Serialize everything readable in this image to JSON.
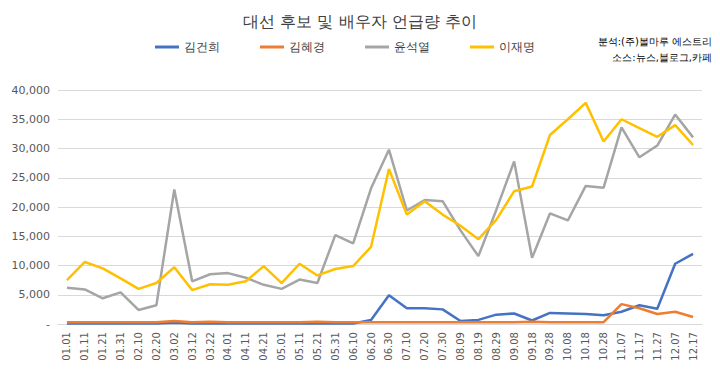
{
  "chart_data": {
    "type": "line",
    "title": "대선 후보 및 배우자 언급량 추이",
    "annotations": [
      "분석:(주)볼마루 에스트리",
      "소스:뉴스,블로그,카페"
    ],
    "categories": [
      "01.01",
      "01.11",
      "01.21",
      "01.31",
      "02.10",
      "02.20",
      "03.02",
      "03.12",
      "03.22",
      "04.01",
      "04.11",
      "04.21",
      "05.01",
      "05.11",
      "05.21",
      "05.31",
      "06.10",
      "06.20",
      "06.30",
      "07.10",
      "07.20",
      "07.30",
      "08.09",
      "08.19",
      "08.29",
      "09.08",
      "09.18",
      "09.28",
      "10.08",
      "10.18",
      "10.28",
      "11.07",
      "11.17",
      "11.27",
      "12.07",
      "12.17"
    ],
    "series": [
      {
        "name": "김건희",
        "color": "#4472c4",
        "values": [
          100,
          100,
          100,
          100,
          100,
          100,
          200,
          100,
          100,
          100,
          100,
          100,
          100,
          100,
          100,
          100,
          100,
          700,
          4900,
          2700,
          2700,
          2500,
          500,
          700,
          1600,
          1800,
          600,
          1900,
          1800,
          1700,
          1500,
          2100,
          3200,
          2600,
          10300,
          12000
        ]
      },
      {
        "name": "김혜경",
        "color": "#ed7d31",
        "values": [
          300,
          300,
          300,
          300,
          300,
          300,
          500,
          300,
          400,
          300,
          300,
          300,
          300,
          300,
          400,
          300,
          300,
          300,
          300,
          300,
          300,
          300,
          300,
          300,
          300,
          300,
          400,
          300,
          300,
          300,
          300,
          3400,
          2700,
          1700,
          2100,
          1200
        ]
      },
      {
        "name": "윤석열",
        "color": "#a5a5a5",
        "values": [
          6200,
          5900,
          4400,
          5400,
          2400,
          3200,
          23000,
          7300,
          8500,
          8700,
          7900,
          6700,
          6000,
          7600,
          7000,
          15200,
          13800,
          23200,
          29800,
          19400,
          21200,
          21000,
          16000,
          11600,
          19500,
          27800,
          11300,
          18900,
          17700,
          23600,
          23300,
          33600,
          28500,
          30500,
          35800,
          31900
        ]
      },
      {
        "name": "이재명",
        "color": "#ffc000",
        "values": [
          7500,
          10600,
          9500,
          7800,
          6000,
          7000,
          9700,
          5800,
          6800,
          6700,
          7300,
          9900,
          7000,
          10300,
          8300,
          9400,
          9900,
          13200,
          26500,
          18700,
          21000,
          18700,
          16800,
          14500,
          17800,
          22700,
          23500,
          32300,
          35000,
          37800,
          31200,
          35000,
          33500,
          32000,
          34000,
          30600
        ]
      }
    ],
    "ylim": [
      0,
      40000
    ],
    "yticks": [
      {
        "value": 0,
        "label": "-"
      },
      {
        "value": 5000,
        "label": "5,000"
      },
      {
        "value": 10000,
        "label": "10,000"
      },
      {
        "value": 15000,
        "label": "15,000"
      },
      {
        "value": 20000,
        "label": "20,000"
      },
      {
        "value": 25000,
        "label": "25,000"
      },
      {
        "value": 30000,
        "label": "30,000"
      },
      {
        "value": 35000,
        "label": "35,000"
      },
      {
        "value": 40000,
        "label": "40,000"
      }
    ],
    "grid": true,
    "legend": "top"
  }
}
